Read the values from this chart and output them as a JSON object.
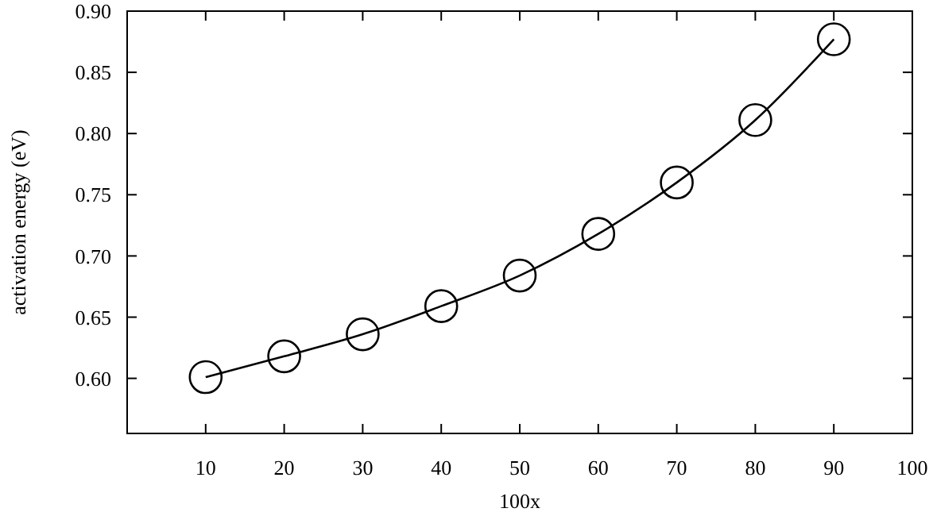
{
  "chart_data": {
    "type": "line",
    "xlabel": "100x",
    "ylabel": "activation energy (eV)",
    "x": [
      10,
      20,
      30,
      40,
      50,
      60,
      70,
      80,
      90
    ],
    "series": [
      {
        "color": "#000000",
        "values": [
          0.601,
          0.618,
          0.636,
          0.659,
          0.684,
          0.718,
          0.76,
          0.811,
          0.877
        ]
      }
    ],
    "marker": "circle",
    "line_style": "solid",
    "grid": false,
    "xlim": [
      0,
      100
    ],
    "xticks": [
      10,
      20,
      30,
      40,
      50,
      60,
      70,
      80,
      90,
      100
    ],
    "ylim": [
      0.555,
      0.9
    ],
    "yticks": [
      {
        "value": 0.6,
        "label": "0.60"
      },
      {
        "value": 0.65,
        "label": "0.65"
      },
      {
        "value": 0.7,
        "label": "0.70"
      },
      {
        "value": 0.75,
        "label": "0.75"
      },
      {
        "value": 0.8,
        "label": "0.80"
      },
      {
        "value": 0.85,
        "label": "0.85"
      },
      {
        "value": 0.9,
        "label": "0.90"
      }
    ]
  }
}
